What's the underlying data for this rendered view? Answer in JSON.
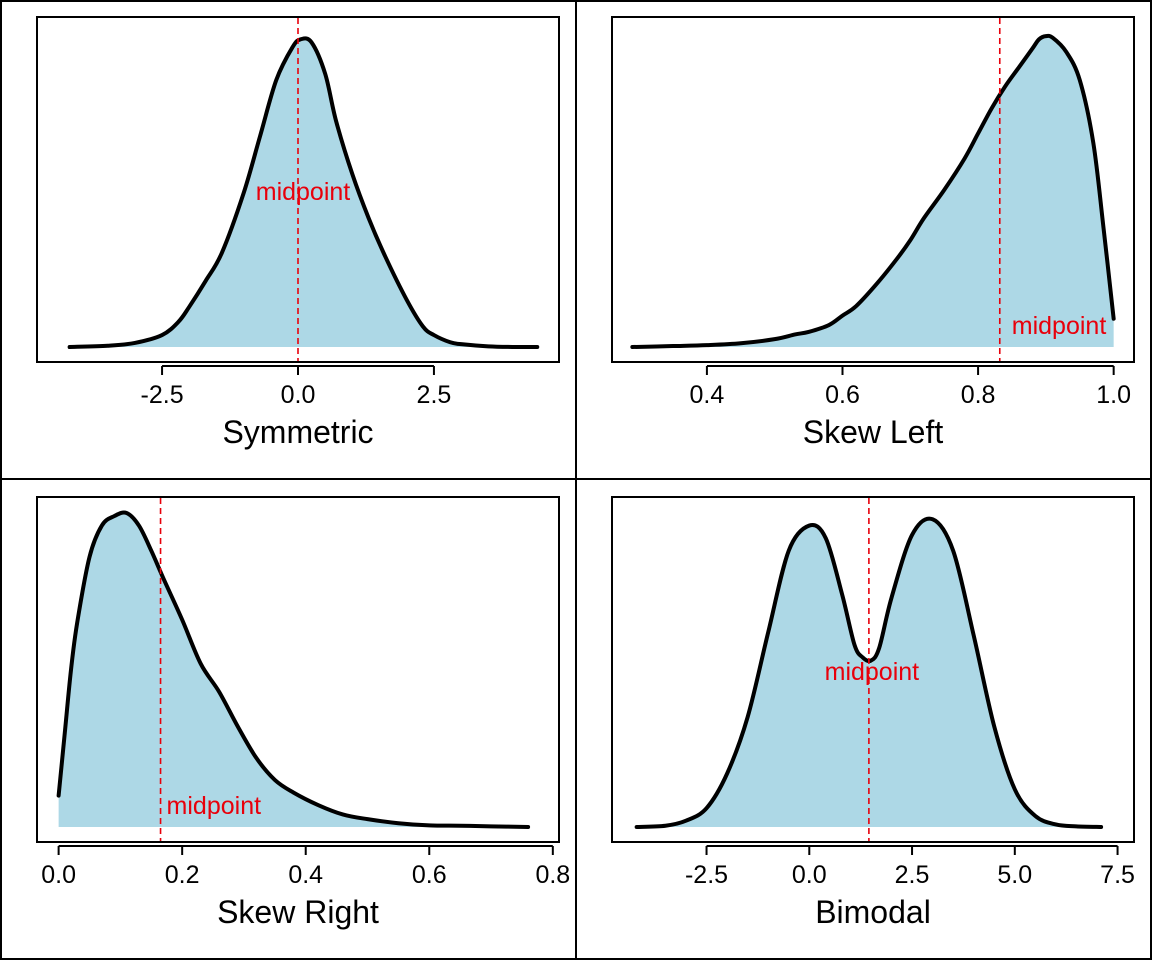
{
  "colors": {
    "fill": "#add8e6",
    "curve": "#000000",
    "midpoint": "#e8000b",
    "frame": "#000000",
    "background": "#ffffff"
  },
  "chart_data": [
    {
      "type": "area",
      "xlabel": "Symmetric",
      "xlim": [
        -4.8,
        4.8
      ],
      "xticks": [
        -2.5,
        0.0,
        2.5
      ],
      "tick_labels": [
        "-2.5",
        "0.0",
        "2.5"
      ],
      "midpoint": 0.0,
      "midpoint_label": "midpoint",
      "midpoint_label_y": 0.49,
      "x": [
        -4.2,
        -3.5,
        -3.0,
        -2.5,
        -2.2,
        -2.0,
        -1.7,
        -1.4,
        -1.0,
        -0.7,
        -0.4,
        -0.1,
        0.05,
        0.25,
        0.5,
        0.7,
        1.0,
        1.3,
        1.6,
        2.0,
        2.3,
        2.5,
        2.8,
        3.0,
        3.5,
        4.0,
        4.4
      ],
      "y": [
        0.0,
        0.004,
        0.013,
        0.038,
        0.08,
        0.128,
        0.21,
        0.3,
        0.49,
        0.67,
        0.85,
        0.955,
        0.98,
        0.97,
        0.87,
        0.72,
        0.55,
        0.41,
        0.29,
        0.15,
        0.065,
        0.038,
        0.015,
        0.009,
        0.002,
        0.0,
        0.0
      ],
      "ymax": 1.0
    },
    {
      "type": "area",
      "xlabel": "Skew Left",
      "xlim": [
        0.26,
        1.03
      ],
      "xticks": [
        0.4,
        0.6,
        0.8,
        1.0
      ],
      "tick_labels": [
        "0.4",
        "0.6",
        "0.8",
        "1.0"
      ],
      "midpoint": 0.832,
      "midpoint_label": "midpoint",
      "midpoint_label_y": 0.06,
      "x": [
        0.29,
        0.35,
        0.4,
        0.45,
        0.5,
        0.53,
        0.55,
        0.58,
        0.6,
        0.62,
        0.65,
        0.68,
        0.7,
        0.72,
        0.75,
        0.78,
        0.8,
        0.82,
        0.84,
        0.86,
        0.88,
        0.89,
        0.9,
        0.91,
        0.93,
        0.95,
        0.97,
        0.985,
        1.0
      ],
      "y": [
        0.0,
        0.003,
        0.006,
        0.012,
        0.025,
        0.04,
        0.048,
        0.07,
        0.1,
        0.13,
        0.2,
        0.28,
        0.34,
        0.41,
        0.5,
        0.6,
        0.68,
        0.76,
        0.83,
        0.89,
        0.95,
        0.98,
        0.99,
        0.985,
        0.94,
        0.85,
        0.65,
        0.38,
        0.09
      ],
      "ymax": 1.0
    },
    {
      "type": "area",
      "xlabel": "Skew Right",
      "xlim": [
        -0.035,
        0.81
      ],
      "xticks": [
        0.0,
        0.2,
        0.4,
        0.6,
        0.8
      ],
      "tick_labels": [
        "0.0",
        "0.2",
        "0.4",
        "0.6",
        "0.8"
      ],
      "midpoint": 0.165,
      "midpoint_label": "midpoint",
      "midpoint_label_y": 0.06,
      "x": [
        0.0,
        0.01,
        0.02,
        0.03,
        0.05,
        0.07,
        0.09,
        0.11,
        0.13,
        0.15,
        0.17,
        0.2,
        0.23,
        0.26,
        0.29,
        0.32,
        0.35,
        0.38,
        0.42,
        0.46,
        0.5,
        0.55,
        0.6,
        0.65,
        0.7,
        0.76
      ],
      "y": [
        0.1,
        0.3,
        0.5,
        0.65,
        0.86,
        0.96,
        0.99,
        1.0,
        0.96,
        0.88,
        0.79,
        0.66,
        0.52,
        0.43,
        0.32,
        0.22,
        0.15,
        0.11,
        0.07,
        0.04,
        0.025,
        0.012,
        0.005,
        0.004,
        0.002,
        0.0
      ],
      "ymax": 1.0
    },
    {
      "type": "area",
      "xlabel": "Bimodal",
      "xlim": [
        -4.8,
        7.9
      ],
      "xticks": [
        -2.5,
        0.0,
        2.5,
        5.0,
        7.5
      ],
      "tick_labels": [
        "-2.5",
        "0.0",
        "2.5",
        "5.0",
        "7.5"
      ],
      "midpoint": 1.45,
      "midpoint_label": "midpoint",
      "midpoint_label_y": 0.49,
      "x": [
        -4.2,
        -3.5,
        -3.0,
        -2.5,
        -2.0,
        -1.5,
        -1.0,
        -0.5,
        0.0,
        0.4,
        0.8,
        1.1,
        1.3,
        1.5,
        1.7,
        2.0,
        2.5,
        3.0,
        3.5,
        4.0,
        4.5,
        5.0,
        5.5,
        6.0,
        6.5,
        7.1
      ],
      "y": [
        0.0,
        0.004,
        0.02,
        0.06,
        0.17,
        0.35,
        0.62,
        0.88,
        0.96,
        0.92,
        0.74,
        0.58,
        0.54,
        0.53,
        0.57,
        0.73,
        0.93,
        0.98,
        0.88,
        0.61,
        0.32,
        0.12,
        0.035,
        0.008,
        0.002,
        0.0
      ],
      "ymax": 1.0
    }
  ]
}
